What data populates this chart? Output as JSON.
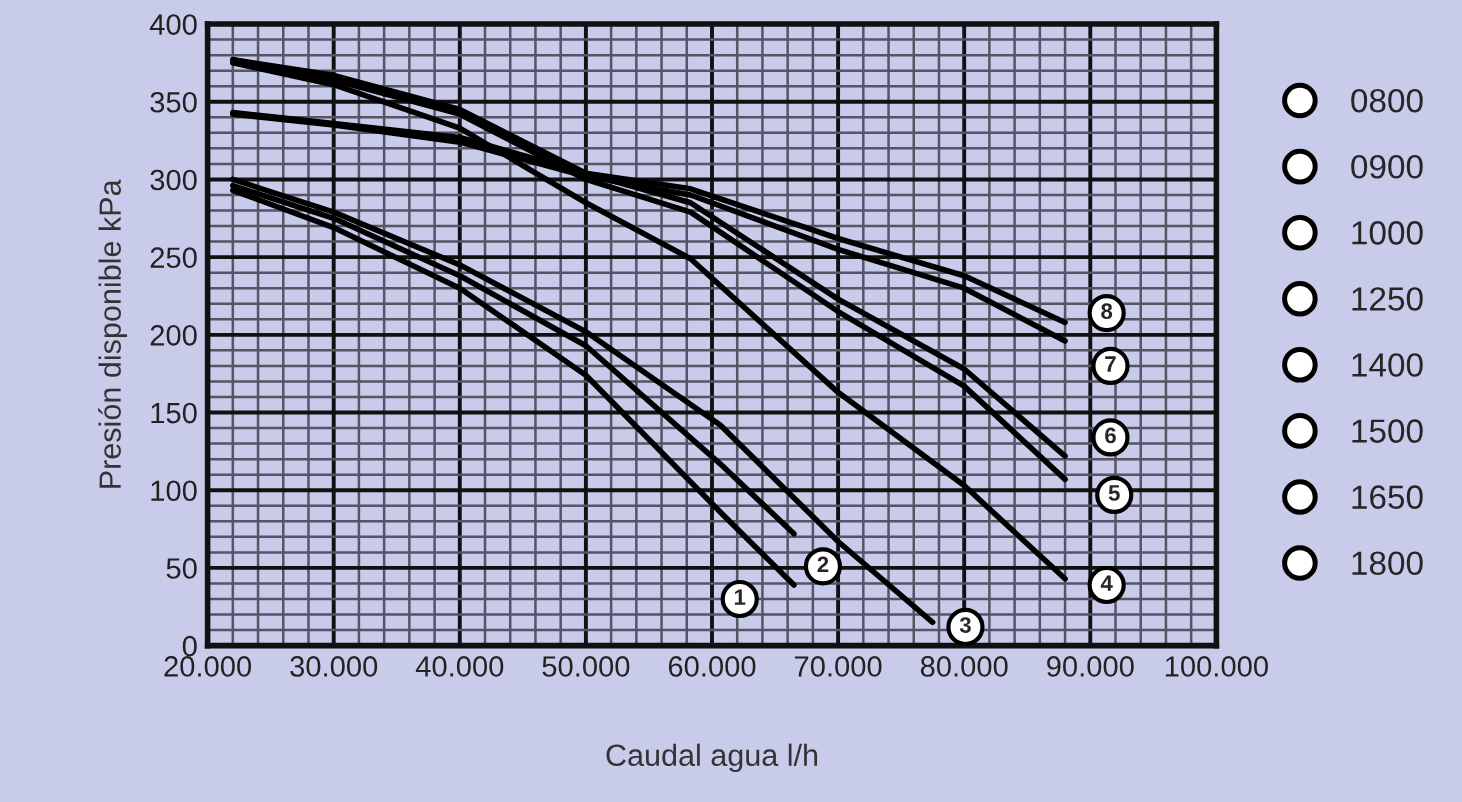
{
  "chart_data": {
    "type": "line",
    "xlabel": "Caudal agua l/h",
    "ylabel": "Presión disponible kPa",
    "xlim": [
      20000,
      100000
    ],
    "xticks": [
      {
        "value": 20000,
        "label": "20.000"
      },
      {
        "value": 30000,
        "label": "30.000"
      },
      {
        "value": 40000,
        "label": "40.000"
      },
      {
        "value": 50000,
        "label": "50.000"
      },
      {
        "value": 60000,
        "label": "60.000"
      },
      {
        "value": 70000,
        "label": "70.000"
      },
      {
        "value": 80000,
        "label": "80.000"
      },
      {
        "value": 90000,
        "label": "90.000"
      },
      {
        "value": 100000,
        "label": "100.000"
      }
    ],
    "ylim": [
      0,
      400
    ],
    "yticks": [
      0,
      50,
      100,
      150,
      200,
      250,
      300,
      350,
      400
    ],
    "grid": true,
    "legend": "right",
    "marker": "none",
    "line_style": "solid",
    "series": [
      {
        "name": "0800",
        "color": "#000000",
        "x": [
          22000,
          30000,
          40000,
          50000,
          60650,
          66500
        ],
        "values": [
          293,
          269,
          230,
          174,
          86,
          39
        ]
      },
      {
        "name": "0900",
        "color": "#000000",
        "x": [
          22000,
          30000,
          40000,
          50000,
          60650,
          66500
        ],
        "values": [
          296,
          275,
          238,
          193,
          117,
          72
        ]
      },
      {
        "name": "1000",
        "color": "#000000",
        "x": [
          22000,
          30000,
          40000,
          50000,
          60650,
          70000,
          77500
        ],
        "values": [
          300,
          279,
          245,
          202,
          142,
          67,
          15
        ]
      },
      {
        "name": "1250",
        "color": "#000000",
        "x": [
          22000,
          30000,
          40000,
          50000,
          58300,
          70000,
          80000,
          88000
        ],
        "values": [
          375,
          361,
          333,
          285,
          249,
          163,
          103,
          43
        ]
      },
      {
        "name": "1400",
        "color": "#000000",
        "x": [
          22000,
          30000,
          40000,
          50000,
          58300,
          70000,
          80000,
          88000
        ],
        "values": [
          377,
          364,
          342,
          300,
          279,
          215,
          167,
          107
        ]
      },
      {
        "name": "1500",
        "color": "#000000",
        "x": [
          22000,
          30000,
          40000,
          50000,
          58300,
          70000,
          80000,
          88000
        ],
        "values": [
          377,
          367,
          345,
          304,
          285,
          223,
          178,
          122
        ]
      },
      {
        "name": "1650",
        "color": "#000000",
        "x": [
          22000,
          30000,
          40000,
          50000,
          58300,
          70000,
          80000,
          88000
        ],
        "values": [
          342,
          335,
          324,
          302,
          290,
          255,
          230,
          196
        ]
      },
      {
        "name": "1800",
        "color": "#000000",
        "x": [
          22000,
          30000,
          40000,
          50000,
          58300,
          70000,
          80000,
          88000
        ],
        "values": [
          343,
          336,
          327,
          304,
          294,
          262,
          238,
          208
        ]
      }
    ],
    "annotations": [
      {
        "text": "1",
        "x": 62200,
        "y": 30
      },
      {
        "text": "2",
        "x": 68800,
        "y": 51
      },
      {
        "text": "3",
        "x": 80100,
        "y": 12
      },
      {
        "text": "4",
        "x": 91300,
        "y": 39
      },
      {
        "text": "5",
        "x": 91900,
        "y": 97
      },
      {
        "text": "6",
        "x": 91600,
        "y": 134
      },
      {
        "text": "7",
        "x": 91600,
        "y": 180
      },
      {
        "text": "8",
        "x": 91300,
        "y": 214
      }
    ]
  }
}
